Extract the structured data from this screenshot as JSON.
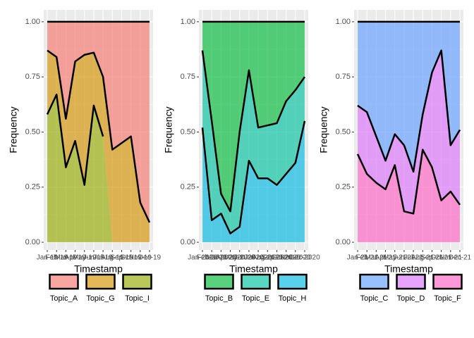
{
  "chart_data": [
    {
      "type": "area",
      "x_label": "Timestamp",
      "y_label": "Frequency",
      "categories": [
        "Jan-19",
        "Feb-19",
        "Mar-19",
        "Apr-19",
        "May-19",
        "Jun-19",
        "Jul-19",
        "Aug-19",
        "Sep-19",
        "Oct-19",
        "Nov-19",
        "Dec-19"
      ],
      "series": [
        {
          "name": "Topic_A",
          "color": "#F8766D",
          "values": [
            0.13,
            0.16,
            0.44,
            0.18,
            0.15,
            0.14,
            0.25,
            0.58,
            0.55,
            0.52,
            0.82,
            0.91
          ]
        },
        {
          "name": "Topic_G",
          "color": "#D39200",
          "values": [
            0.29,
            0.17,
            0.22,
            0.36,
            0.59,
            0.24,
            0.27,
            0.42,
            0.45,
            0.48,
            0.18,
            0.09
          ]
        },
        {
          "name": "Topic_I",
          "color": "#93AA00",
          "values": [
            0.58,
            0.67,
            0.34,
            0.46,
            0.26,
            0.62,
            0.48,
            null,
            null,
            null,
            null,
            null
          ]
        }
      ],
      "ylim": [
        -0.035,
        1.054
      ],
      "yticks": [
        {
          "value": 0,
          "label": "0.00"
        },
        {
          "value": 0.25,
          "label": "0.25"
        },
        {
          "value": 0.5,
          "label": "0.50"
        },
        {
          "value": 0.75,
          "label": "0.75"
        },
        {
          "value": 1,
          "label": "1.00"
        }
      ],
      "grid": true
    },
    {
      "type": "area",
      "x_label": "Timestamp",
      "y_label": "Frequency",
      "categories": [
        "Jan-2020",
        "Feb-2020",
        "Mar-2020",
        "Apr-2020",
        "May-2020",
        "Jun-2020",
        "Jul-2020",
        "Aug-2020",
        "Sep-2020",
        "Oct-2020",
        "Nov-2020",
        "Dec-2020"
      ],
      "series": [
        {
          "name": "Topic_B",
          "color": "#00BA38",
          "values": [
            0.13,
            0.45,
            0.78,
            0.86,
            0.5,
            0.22,
            0.48,
            0.47,
            0.46,
            0.36,
            0.31,
            0.25
          ]
        },
        {
          "name": "Topic_E",
          "color": "#00C19F",
          "values": [
            0.35,
            0.45,
            0.09,
            0.1,
            0.43,
            0.41,
            0.23,
            0.24,
            0.28,
            0.33,
            0.33,
            0.2
          ]
        },
        {
          "name": "Topic_H",
          "color": "#00B9E3",
          "values": [
            0.52,
            0.1,
            0.13,
            0.04,
            0.07,
            0.37,
            0.29,
            0.29,
            0.26,
            0.31,
            0.36,
            0.55
          ]
        }
      ],
      "ylim": [
        -0.035,
        1.054
      ],
      "yticks": [
        {
          "value": 0,
          "label": "0.00"
        },
        {
          "value": 0.25,
          "label": "0.25"
        },
        {
          "value": 0.5,
          "label": "0.50"
        },
        {
          "value": 0.75,
          "label": "0.75"
        },
        {
          "value": 1,
          "label": "1.00"
        }
      ],
      "grid": true
    },
    {
      "type": "area",
      "x_label": "Timestamp",
      "y_label": "Frequency",
      "categories": [
        "Jan-21",
        "Feb-21",
        "Mar-21",
        "Apr-21",
        "May-21",
        "Jun-21",
        "Jul-21",
        "Aug-21",
        "Sep-21",
        "Oct-21",
        "Nov-21",
        "Dec-21"
      ],
      "series": [
        {
          "name": "Topic_C",
          "color": "#619CFF",
          "values": [
            0.38,
            0.41,
            0.52,
            0.63,
            0.51,
            0.56,
            0.68,
            0.42,
            0.23,
            0.13,
            0.56,
            0.49
          ]
        },
        {
          "name": "Topic_D",
          "color": "#DB72FB",
          "values": [
            0.22,
            0.28,
            0.21,
            0.13,
            0.14,
            0.3,
            0.19,
            0.16,
            0.43,
            0.68,
            0.21,
            0.34
          ]
        },
        {
          "name": "Topic_F",
          "color": "#FF61C3",
          "values": [
            0.4,
            0.31,
            0.27,
            0.24,
            0.35,
            0.14,
            0.13,
            0.42,
            0.34,
            0.19,
            0.23,
            0.17
          ]
        }
      ],
      "ylim": [
        -0.035,
        1.054
      ],
      "yticks": [
        {
          "value": 0,
          "label": "0.00"
        },
        {
          "value": 0.25,
          "label": "0.25"
        },
        {
          "value": 0.5,
          "label": "0.50"
        },
        {
          "value": 0.75,
          "label": "0.75"
        },
        {
          "value": 1,
          "label": "1.00"
        }
      ],
      "grid": true
    }
  ]
}
